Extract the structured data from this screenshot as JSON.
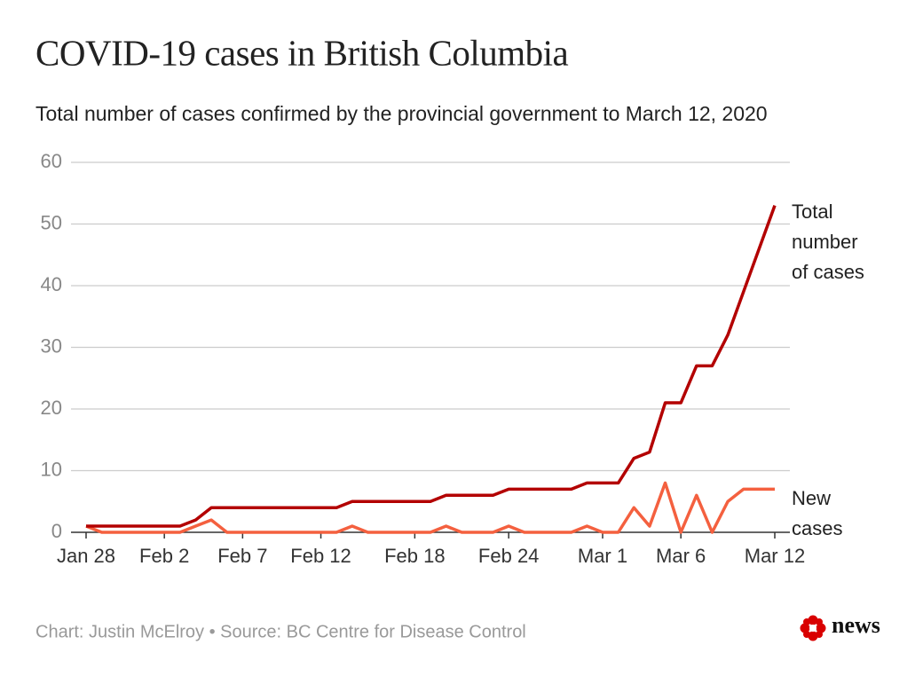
{
  "chart_data": {
    "type": "line",
    "title": "COVID-19 cases in British Columbia",
    "subtitle": "Total number of cases confirmed by the provincial government to March 12, 2020",
    "source": "Chart: Justin McElroy • Source: BC Centre for Disease Control",
    "logo": "news",
    "categories": [
      "Jan 28",
      null,
      null,
      null,
      null,
      "Feb 2",
      null,
      null,
      null,
      null,
      "Feb 7",
      null,
      null,
      null,
      null,
      "Feb 12",
      null,
      null,
      null,
      null,
      null,
      "Feb 18",
      null,
      null,
      null,
      null,
      null,
      "Feb 24",
      null,
      null,
      null,
      null,
      null,
      "Mar 1",
      null,
      null,
      null,
      null,
      "Mar 6",
      null,
      null,
      null,
      null,
      null,
      "Mar 12"
    ],
    "series": [
      {
        "name": "Total number of cases",
        "color": "#b30000",
        "values": [
          1,
          1,
          1,
          1,
          1,
          1,
          1,
          2,
          4,
          4,
          4,
          4,
          4,
          4,
          4,
          4,
          4,
          5,
          5,
          5,
          5,
          5,
          5,
          6,
          6,
          6,
          6,
          7,
          7,
          7,
          7,
          7,
          8,
          8,
          8,
          12,
          13,
          21,
          21,
          27,
          27,
          32,
          39,
          46,
          53
        ]
      },
      {
        "name": "New cases",
        "color": "#f4603f",
        "values": [
          1,
          0,
          0,
          0,
          0,
          0,
          0,
          1,
          2,
          0,
          0,
          0,
          0,
          0,
          0,
          0,
          0,
          1,
          0,
          0,
          0,
          0,
          0,
          1,
          0,
          0,
          0,
          1,
          0,
          0,
          0,
          0,
          1,
          0,
          0,
          4,
          1,
          8,
          0,
          6,
          0,
          5,
          7,
          7,
          7
        ]
      }
    ],
    "ylim": [
      0,
      60
    ],
    "yticks": [
      0,
      10,
      20,
      30,
      40,
      50,
      60
    ],
    "grid": true
  }
}
